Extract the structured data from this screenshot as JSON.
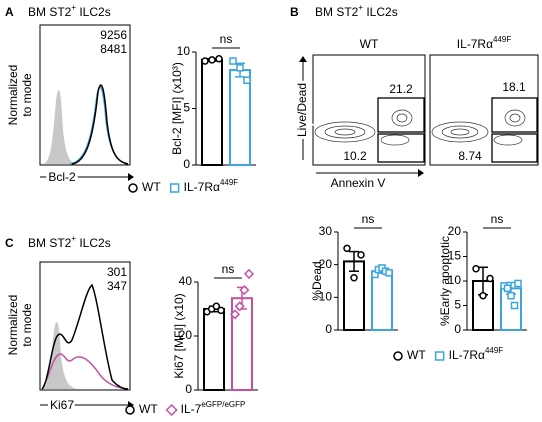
{
  "panels": {
    "A": {
      "label": "A",
      "title": [
        "BM ST2",
        "+",
        " ILC2s"
      ],
      "hist_ylabel": [
        "Normalized",
        "to mode"
      ],
      "hist_xlabel": "Bcl-2",
      "mfi": [
        9256,
        8481
      ],
      "legend": [
        [
          "WT"
        ],
        [
          "IL-7Rα",
          "449F"
        ]
      ]
    },
    "B": {
      "label": "B",
      "title": [
        "BM ST2",
        "+",
        " ILC2s"
      ],
      "headers": [
        [
          "WT"
        ],
        [
          "IL-7Rα",
          "449F"
        ]
      ],
      "ylabel": "Live/Dead",
      "xlabel": "Annexin V",
      "gates": [
        [
          21.2,
          10.2
        ],
        [
          18.1,
          8.74
        ]
      ],
      "legend": [
        [
          "WT"
        ],
        [
          "IL-7Rα",
          "449F"
        ]
      ]
    },
    "C": {
      "label": "C",
      "title": [
        "BM ST2",
        "+",
        " ILC2s"
      ],
      "hist_ylabel": [
        "Normalized",
        "to mode"
      ],
      "hist_xlabel": "Ki67",
      "mfi": [
        301,
        347
      ],
      "legend": [
        [
          "WT"
        ],
        [
          "IL-7",
          "eGFP/eGFP"
        ]
      ]
    }
  },
  "chart_data": [
    {
      "type": "bar",
      "ylabel": "Bcl-2 [MFI] (x10³)",
      "annotation": "ns",
      "ylim": [
        0,
        10
      ],
      "yticks": [
        0,
        5,
        10
      ],
      "series": [
        {
          "color": "#000000",
          "marker": "circle",
          "values": [
            9.3
          ],
          "errors": [
            0.1
          ],
          "points": [
            9.2,
            9.3,
            9.4
          ]
        },
        {
          "color": "#3aa6dd",
          "marker": "square",
          "values": [
            8.4
          ],
          "errors": [
            0.6
          ],
          "points": [
            9.2,
            8.6,
            7.5
          ]
        }
      ]
    },
    {
      "type": "bar",
      "ylabel": "%Dead",
      "annotation": "ns",
      "ylim": [
        0,
        30
      ],
      "yticks": [
        0,
        10,
        20,
        30
      ],
      "series": [
        {
          "color": "#000000",
          "marker": "circle",
          "values": [
            21
          ],
          "errors": [
            3
          ],
          "points": [
            25,
            16,
            23
          ]
        },
        {
          "color": "#3aa6dd",
          "marker": "square",
          "values": [
            18
          ],
          "errors": [
            0.6
          ],
          "points": [
            17,
            18.5,
            19,
            18,
            17.5
          ]
        }
      ]
    },
    {
      "type": "bar",
      "ylabel": "%Early apoptotic",
      "annotation": "ns",
      "ylim": [
        0,
        20
      ],
      "yticks": [
        0,
        5,
        10,
        15,
        20
      ],
      "series": [
        {
          "color": "#000000",
          "marker": "circle",
          "values": [
            10
          ],
          "errors": [
            2.8
          ],
          "points": [
            12.5,
            7,
            10.5
          ]
        },
        {
          "color": "#3aa6dd",
          "marker": "square",
          "values": [
            8.5
          ],
          "errors": [
            1.2
          ],
          "points": [
            9,
            8.5,
            7,
            5,
            9.5
          ]
        }
      ]
    },
    {
      "type": "bar",
      "ylabel": "Ki67 [MFI] (x10)",
      "annotation": "ns",
      "ylim": [
        0,
        40
      ],
      "yticks": [
        0,
        20,
        40
      ],
      "series": [
        {
          "color": "#000000",
          "marker": "circle",
          "values": [
            30
          ],
          "errors": [
            1
          ],
          "points": [
            29,
            30,
            31,
            29.5
          ]
        },
        {
          "color": "#c54fa2",
          "marker": "diamond",
          "values": [
            34
          ],
          "errors": [
            4
          ],
          "points": [
            28,
            31,
            37,
            43
          ]
        }
      ]
    }
  ]
}
